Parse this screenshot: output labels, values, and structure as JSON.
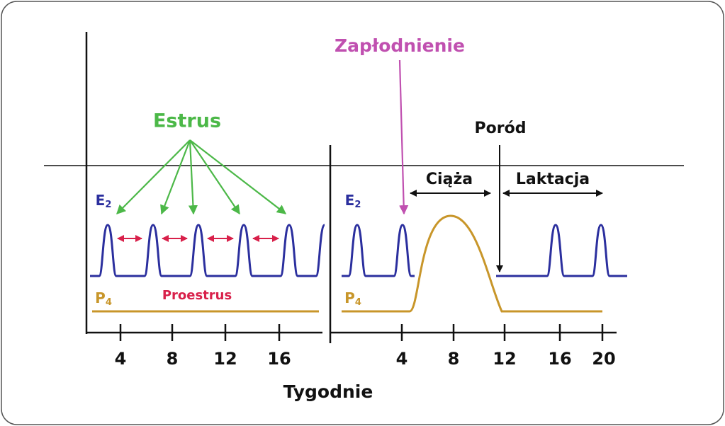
{
  "labels": {
    "estrus": "Estrus",
    "fertilization": "Zapłodnienie",
    "birth": "Poród",
    "pregnancy": "Ciąża",
    "lactation": "Laktacja",
    "proestrus": "Proestrus",
    "x_axis": "Tygodnie"
  },
  "left_panel": {
    "e2": "E",
    "e2_sub": "2",
    "p4": "P",
    "p4_sub": "4",
    "ticks": [
      "4",
      "8",
      "12",
      "16"
    ]
  },
  "right_panel": {
    "e2": "E",
    "e2_sub": "2",
    "p4": "P",
    "p4_sub": "4",
    "ticks": [
      "4",
      "8",
      "12",
      "16",
      "20"
    ]
  }
}
